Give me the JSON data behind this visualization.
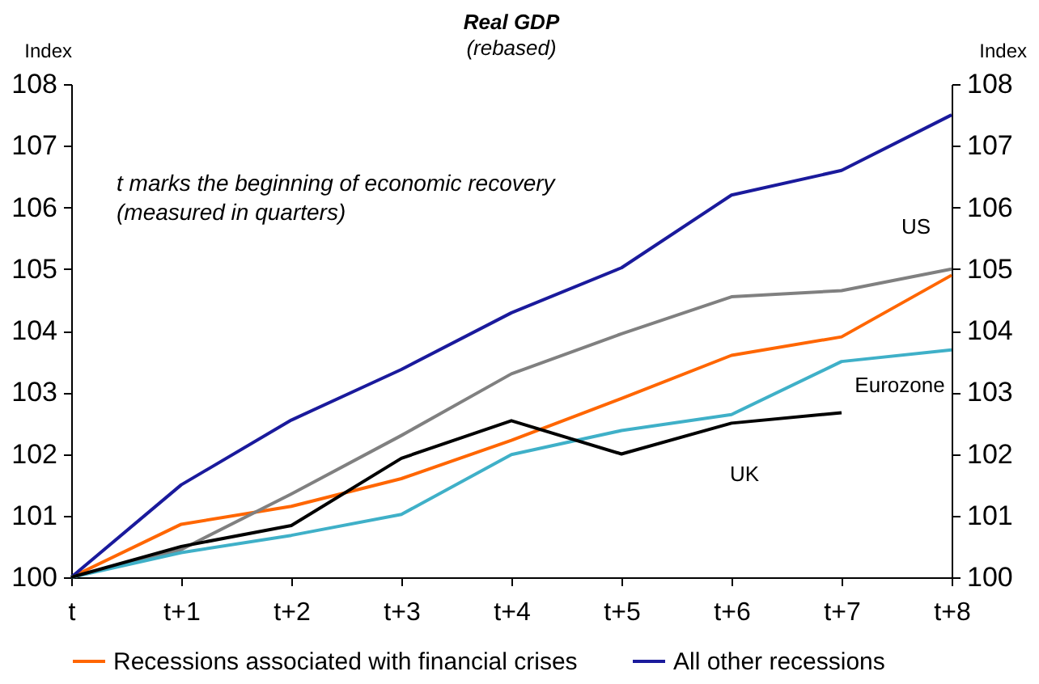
{
  "chart_data": {
    "type": "line",
    "title": "Real GDP",
    "subtitle": "(rebased)",
    "ylabel": "Index",
    "y2label": "Index",
    "categories": [
      "t",
      "t+1",
      "t+2",
      "t+3",
      "t+4",
      "t+5",
      "t+6",
      "t+7",
      "t+8"
    ],
    "series": [
      {
        "name": "Recessions associated with financial crises",
        "color": "#ff6600",
        "values": [
          100,
          100.86,
          101.15,
          101.6,
          102.22,
          102.9,
          103.6,
          103.9,
          104.9
        ]
      },
      {
        "name": "All other recessions",
        "color": "#1a1a9c",
        "values": [
          100,
          101.5,
          102.55,
          103.37,
          104.29,
          105.02,
          106.2,
          106.6,
          107.5
        ]
      },
      {
        "color": "#808080",
        "values": [
          100,
          100.45,
          101.35,
          102.3,
          103.3,
          103.95,
          104.55,
          104.65,
          105.0
        ]
      },
      {
        "color": "#3fb0c8",
        "values": [
          100,
          100.4,
          100.68,
          101.02,
          101.99,
          102.38,
          102.64,
          103.5,
          103.69
        ]
      },
      {
        "color": "#000000",
        "values": [
          100,
          100.5,
          100.84,
          101.93,
          102.54,
          102.0,
          102.5,
          102.67,
          null
        ]
      }
    ],
    "ylim": [
      100,
      108
    ],
    "yticks": [
      100,
      101,
      102,
      103,
      104,
      105,
      106,
      107,
      108
    ],
    "y2lim": [
      100,
      108
    ],
    "y2ticks": [
      100,
      101,
      102,
      103,
      104,
      105,
      106,
      107,
      108
    ],
    "annotations": [
      "t marks the beginning of economic recovery",
      "(measured in quarters)",
      {
        "text": "US",
        "x": "t+8",
        "y": 105.0
      },
      {
        "text": "Eurozone",
        "x": "t+8",
        "y": 103.69
      },
      {
        "text": "UK",
        "x": "t+6",
        "y": 102.5
      }
    ],
    "legend": "bottom",
    "grid": false
  }
}
